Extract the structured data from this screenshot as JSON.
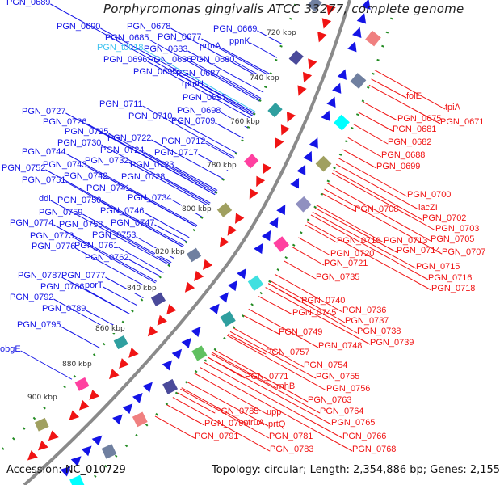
{
  "title": "Porphyromonas gingivalis ATCC 33277, complete genome",
  "footer": {
    "accession": "Accession: NC_010729",
    "topology": "Topology: circular; Length: 2,354,886 bp; Genes: 2,155"
  },
  "colors": {
    "forward": "#1414e6",
    "reverse": "#f01414",
    "trna": "#3fc3f0",
    "backbone": "#808080",
    "dots": "#228b22"
  },
  "kbp_labels": [
    "720 kbp",
    "740 kbp",
    "760 kbp",
    "780 kbp",
    "800 kbp",
    "820 kbp",
    "840 kbp",
    "860 kbp",
    "880 kbp",
    "900 kbp"
  ],
  "blue_labels": [
    "PGN_0689",
    "PGN_0690",
    "PGN_0685",
    "PGN_0678",
    "PGN_0677",
    "PGN_0669",
    "ppnK",
    "prmA",
    "PGN_t0018",
    "PGN_0683",
    "PGN_0696",
    "PGN_0686",
    "PGN_0680",
    "PGN_0695",
    "PGN_0687",
    "rpmH",
    "PGN_0697",
    "PGN_0698",
    "PGN_0711",
    "PGN_0710",
    "PGN_0709",
    "PGN_0727",
    "PGN_0726",
    "PGN_0725",
    "PGN_0722",
    "PGN_0712",
    "PGN_0730",
    "PGN_0724",
    "PGN_0717",
    "PGN_0744",
    "PGN_0732",
    "PGN_0723",
    "PGN_0752",
    "PGN_0743",
    "PGN_0742",
    "PGN_0728",
    "PGN_0751",
    "PGN_0741",
    "ddl",
    "PGN_0750",
    "PGN_0734",
    "PGN_0746",
    "PGN_0759",
    "PGN_0774",
    "PGN_0758",
    "PGN_0747",
    "PGN_0773",
    "PGN_0753",
    "PGN_0776",
    "PGN_0761",
    "PGN_0762",
    "PGN_0787",
    "PGN_0777",
    "PGN_0786",
    "porT",
    "PGN_0792",
    "PGN_0789",
    "PGN_0795",
    "obgE"
  ],
  "red_labels": [
    "folE",
    "tpiA",
    "PGN_0675",
    "PGN_0671",
    "PGN_0681",
    "PGN_0682",
    "PGN_0688",
    "PGN_0699",
    "PGN_0700",
    "lacZI",
    "PGN_0708",
    "PGN_0702",
    "PGN_0703",
    "PGN_0705",
    "PGN_0713",
    "PGN_0719",
    "PGN_0714",
    "PGN_0707",
    "PGN_0720",
    "PGN_0721",
    "PGN_0715",
    "PGN_0716",
    "PGN_0735",
    "PGN_0718",
    "PGN_0740",
    "PGN_0736",
    "PGN_0745",
    "PGN_0737",
    "PGN_0738",
    "PGN_0749",
    "PGN_0739",
    "PGN_0748",
    "PGN_0757",
    "PGN_0754",
    "PGN_0755",
    "PGN_0771",
    "PGN_0756",
    "rnhB",
    "PGN_0763",
    "PGN_0764",
    "upp",
    "PGN_0785",
    "PGN_0765",
    "PGN_0790",
    "truA",
    "prtQ",
    "PGN_0781",
    "PGN_0766",
    "PGN_0791",
    "PGN_0783",
    "PGN_0768"
  ]
}
